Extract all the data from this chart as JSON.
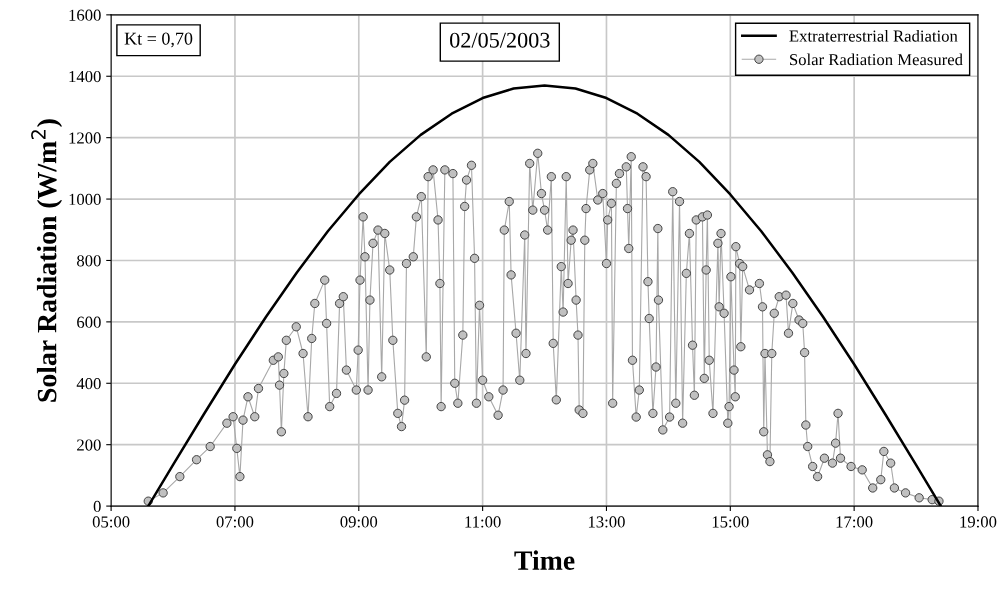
{
  "chart_data": {
    "type": "line",
    "xlabel": "Time",
    "ylabel": "Solar Radiation (W/m$^{2}$)",
    "annotations": [
      "Kt = 0,70",
      "02/05/2003"
    ],
    "xlim": [
      5,
      19
    ],
    "xticks": [
      {
        "value": 5,
        "label": "05:00"
      },
      {
        "value": 7,
        "label": "07:00"
      },
      {
        "value": 9,
        "label": "09:00"
      },
      {
        "value": 11,
        "label": "11:00"
      },
      {
        "value": 13,
        "label": "13:00"
      },
      {
        "value": 15,
        "label": "15:00"
      },
      {
        "value": 17,
        "label": "17:00"
      },
      {
        "value": 19,
        "label": "19:00"
      }
    ],
    "ylim": [
      0,
      1600
    ],
    "yticks": [
      0,
      200,
      400,
      600,
      800,
      1000,
      1200,
      1400,
      1600
    ],
    "grid": true,
    "legend": "top right",
    "series": [
      {
        "name": "Extraterrestrial Radiation",
        "color": "#000000",
        "marker": "none",
        "x": [
          5.6,
          6,
          6.5,
          7,
          7.5,
          8,
          8.5,
          9,
          9.5,
          10,
          10.5,
          11,
          11.5,
          12,
          12.5,
          13,
          13.5,
          14,
          14.5,
          15,
          15.5,
          16,
          16.5,
          17,
          17.5,
          18,
          18.4
        ],
        "values": [
          0,
          134,
          300,
          462,
          616,
          761,
          895,
          1015,
          1121,
          1209,
          1278,
          1329,
          1360,
          1370,
          1360,
          1329,
          1278,
          1209,
          1121,
          1015,
          895,
          761,
          616,
          462,
          300,
          134,
          0
        ]
      },
      {
        "name": "Solar Radiation Measured",
        "color": "#c0c0c0",
        "marker": "circle",
        "x": [
          5.6,
          5.84,
          6.11,
          6.38,
          6.6,
          6.87,
          6.97,
          7.03,
          7.08,
          7.13,
          7.21,
          7.32,
          7.38,
          7.62,
          7.7,
          7.72,
          7.75,
          7.79,
          7.83,
          7.99,
          8.1,
          8.18,
          8.24,
          8.29,
          8.45,
          8.48,
          8.53,
          8.64,
          8.69,
          8.75,
          8.8,
          8.96,
          8.99,
          9.02,
          9.07,
          9.1,
          9.15,
          9.18,
          9.23,
          9.31,
          9.37,
          9.42,
          9.5,
          9.55,
          9.63,
          9.69,
          9.74,
          9.77,
          9.88,
          9.93,
          10.01,
          10.09,
          10.12,
          10.2,
          10.28,
          10.31,
          10.33,
          10.39,
          10.52,
          10.55,
          10.6,
          10.68,
          10.71,
          10.74,
          10.82,
          10.87,
          10.9,
          10.95,
          11.0,
          11.1,
          11.25,
          11.33,
          11.35,
          11.43,
          11.46,
          11.54,
          11.6,
          11.68,
          11.7,
          11.76,
          11.81,
          11.89,
          11.95,
          12.0,
          12.05,
          12.11,
          12.14,
          12.19,
          12.27,
          12.3,
          12.35,
          12.38,
          12.43,
          12.46,
          12.51,
          12.54,
          12.56,
          12.62,
          12.65,
          12.67,
          12.73,
          12.78,
          12.86,
          12.94,
          13.0,
          13.02,
          13.08,
          13.1,
          13.16,
          13.21,
          13.32,
          13.34,
          13.36,
          13.4,
          13.42,
          13.48,
          13.53,
          13.59,
          13.64,
          13.67,
          13.69,
          13.75,
          13.8,
          13.83,
          13.84,
          13.91,
          14.02,
          14.07,
          14.12,
          14.18,
          14.23,
          14.29,
          14.34,
          14.39,
          14.42,
          14.45,
          14.55,
          14.58,
          14.61,
          14.63,
          14.66,
          14.72,
          14.8,
          14.82,
          14.85,
          14.9,
          14.96,
          14.98,
          15.01,
          15.06,
          15.08,
          15.09,
          15.15,
          15.17,
          15.2,
          15.31,
          15.47,
          15.52,
          15.54,
          15.56,
          15.6,
          15.64,
          15.67,
          15.71,
          15.79,
          15.9,
          15.94,
          16.01,
          16.11,
          16.17,
          16.2,
          16.22,
          16.25,
          16.33,
          16.41,
          16.52,
          16.65,
          16.7,
          16.74,
          16.78,
          16.95,
          17.13,
          17.3,
          17.43,
          17.48,
          17.59,
          17.65,
          17.83,
          18.05,
          18.26,
          18.37
        ],
        "values": [
          16,
          43,
          96,
          151,
          194,
          270,
          291,
          188,
          96,
          280,
          356,
          291,
          383,
          475,
          486,
          394,
          242,
          432,
          540,
          584,
          497,
          291,
          546,
          660,
          736,
          595,
          324,
          367,
          660,
          682,
          443,
          378,
          508,
          736,
          942,
          812,
          378,
          671,
          856,
          899,
          421,
          888,
          769,
          540,
          302,
          259,
          345,
          790,
          812,
          942,
          1008,
          486,
          1073,
          1095,
          932,
          725,
          324,
          1095,
          1083,
          400,
          335,
          557,
          976,
          1062,
          1110,
          807,
          335,
          654,
          410,
          356,
          296,
          378,
          899,
          992,
          753,
          563,
          410,
          883,
          497,
          1116,
          964,
          1149,
          1018,
          964,
          899,
          1073,
          530,
          346,
          780,
          632,
          1073,
          725,
          866,
          899,
          671,
          557,
          313,
          302,
          866,
          969,
          1095,
          1116,
          997,
          1018,
          790,
          932,
          986,
          335,
          1051,
          1083,
          1105,
          969,
          839,
          1138,
          475,
          290,
          378,
          1105,
          1073,
          731,
          611,
          302,
          453,
          904,
          671,
          248,
          290,
          1024,
          335,
          992,
          270,
          758,
          888,
          524,
          361,
          932,
          942,
          416,
          769,
          948,
          475,
          302,
          856,
          649,
          888,
          628,
          270,
          324,
          747,
          443,
          356,
          845,
          790,
          519,
          780,
          704,
          725,
          649,
          242,
          497,
          167,
          145,
          497,
          628,
          682,
          687,
          563,
          660,
          606,
          595,
          500,
          264,
          194,
          129,
          96,
          156,
          140,
          205,
          302,
          156,
          129,
          118,
          59,
          86,
          178,
          140,
          59,
          43,
          27,
          21,
          16
        ]
      }
    ]
  }
}
